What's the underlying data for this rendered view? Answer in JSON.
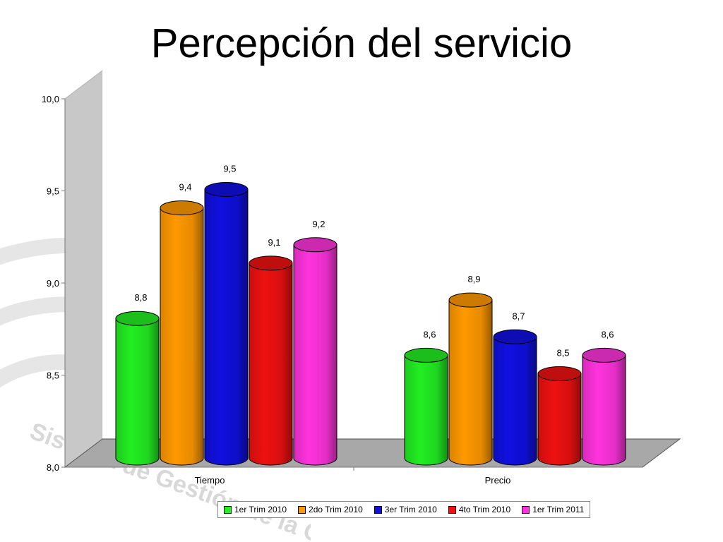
{
  "slide": {
    "title": "Percepción del servicio",
    "watermark_text": "Sistema de Gestión de la Ca"
  },
  "chart_data": {
    "type": "bar",
    "style": "3d-cylinder",
    "categories": [
      "Tiempo",
      "Precio"
    ],
    "series": [
      {
        "name": "1er Trim 2010",
        "color": "#22ee22",
        "values": [
          8.8,
          8.6
        ],
        "labels": [
          "8,8",
          "8,6"
        ]
      },
      {
        "name": "2do Trim 2010",
        "color": "#ff9900",
        "values": [
          9.4,
          8.9
        ],
        "labels": [
          "9,4",
          "8,9"
        ]
      },
      {
        "name": "3er Trim 2010",
        "color": "#1010e0",
        "values": [
          9.5,
          8.7
        ],
        "labels": [
          "9,5",
          "8,7"
        ]
      },
      {
        "name": "4to Trim 2010",
        "color": "#ee1111",
        "values": [
          9.1,
          8.5
        ],
        "labels": [
          "9,1",
          "8,5"
        ]
      },
      {
        "name": "1er Trim 2011",
        "color": "#ff33dd",
        "values": [
          9.2,
          8.6
        ],
        "labels": [
          "9,2",
          "8,6"
        ]
      }
    ],
    "ylim": [
      8.0,
      10.0
    ],
    "yticks": [
      8.0,
      8.5,
      9.0,
      9.5,
      10.0
    ],
    "ytick_labels": [
      "8,0",
      "8,5",
      "9,0",
      "9,5",
      "10,0"
    ],
    "title": "",
    "xlabel": "",
    "ylabel": "",
    "grid": false,
    "legend_position": "bottom"
  }
}
